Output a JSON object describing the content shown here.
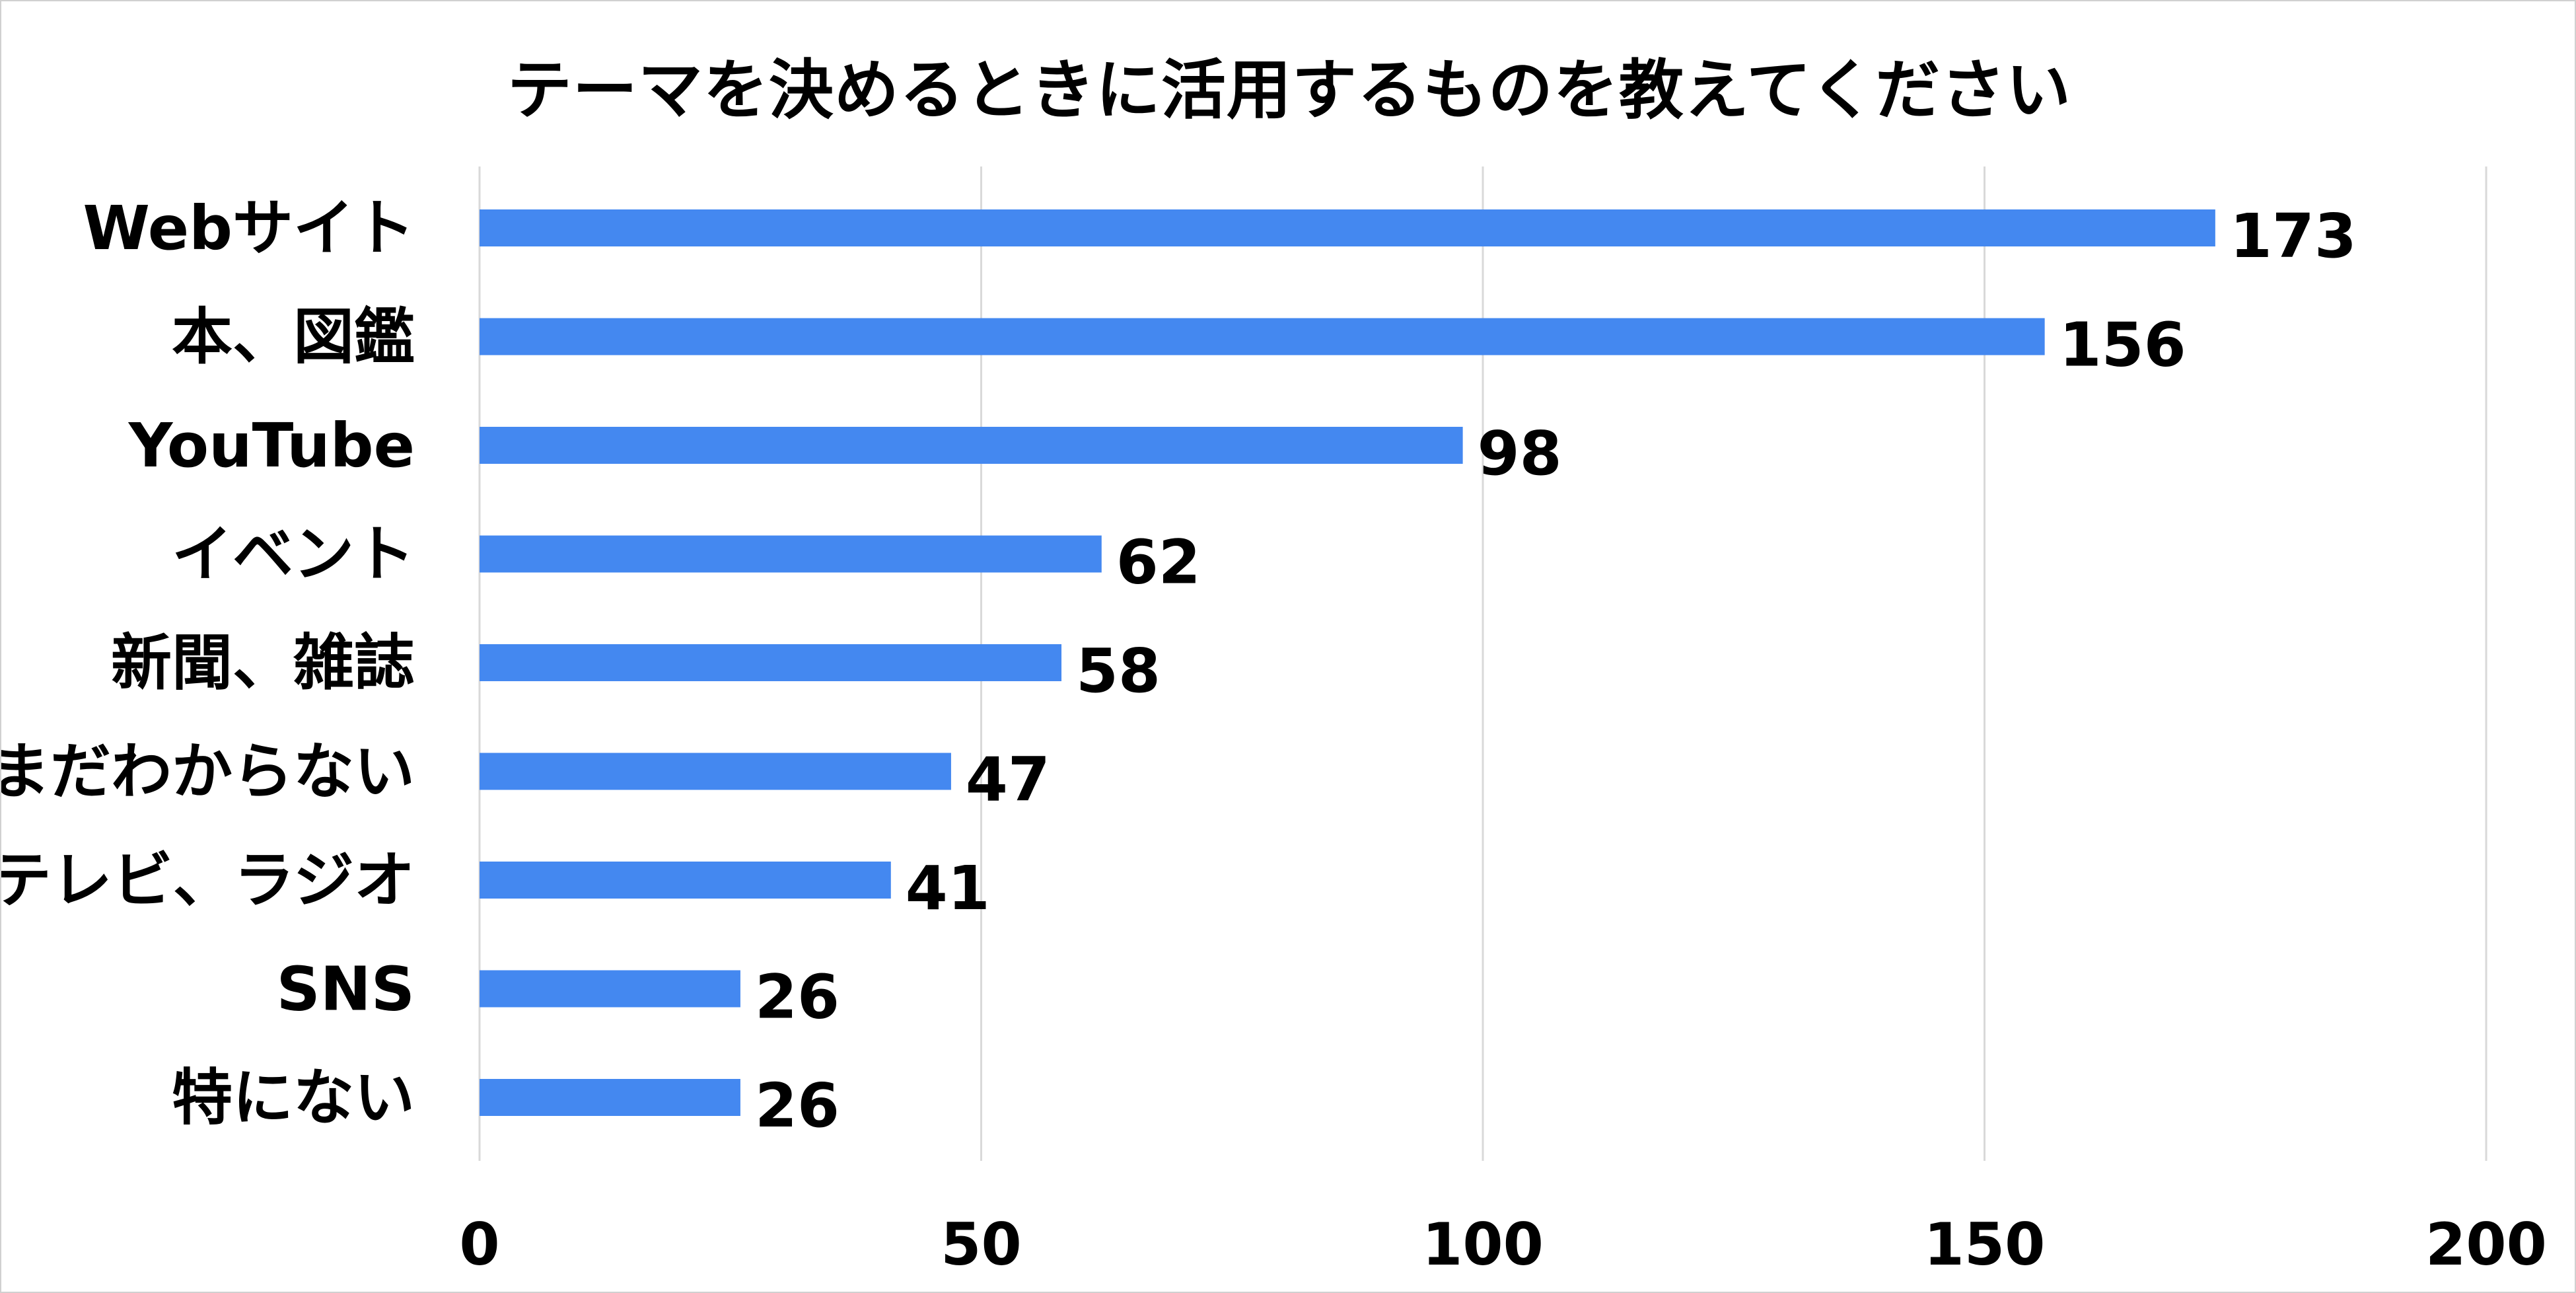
{
  "chart_data": {
    "type": "bar",
    "orientation": "horizontal",
    "title": "テーマを決めるときに活用するものを教えてください",
    "categories": [
      "Webサイト",
      "本、図鑑",
      "YouTube",
      "イベント",
      "新聞、雑誌",
      "まだわからない",
      "テレビ、ラジオ",
      "SNS",
      "特にない"
    ],
    "values": [
      173,
      156,
      98,
      62,
      58,
      47,
      41,
      26,
      26
    ],
    "xlim": [
      0,
      200
    ],
    "xticks": [
      0,
      50,
      100,
      150,
      200
    ],
    "xlabel": "",
    "ylabel": "",
    "grid": "vertical",
    "legend": "none",
    "data_labels": true,
    "bar_color": "#4488F0",
    "grid_color": "#D9D9D9"
  }
}
